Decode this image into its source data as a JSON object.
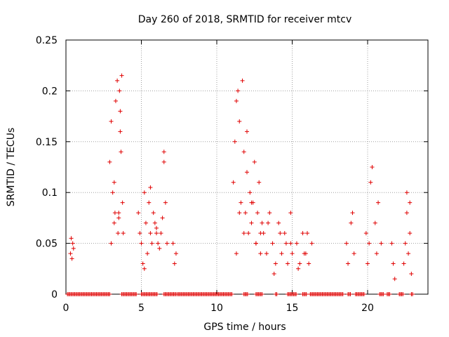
{
  "chart_data": {
    "type": "scatter",
    "title": "Day 260 of 2018, SRMTID for receiver mtcv",
    "xlabel": "GPS time / hours",
    "ylabel": "SRMTID / TECUs",
    "xlim": [
      0,
      24
    ],
    "ylim": [
      0,
      0.25
    ],
    "xticks": [
      0,
      5,
      10,
      15,
      20
    ],
    "yticks": [
      0,
      0.05,
      0.1,
      0.15,
      0.2,
      0.25
    ],
    "xtick_labels": [
      "0",
      "5",
      "10",
      "15",
      "20"
    ],
    "ytick_labels": [
      "0",
      "0.05",
      "0.1",
      "0.15",
      "0.2",
      "0.25"
    ],
    "grid": true,
    "marker": "+",
    "color": "#e00000",
    "series": [
      {
        "name": "SRMTID",
        "x": [
          0.3,
          0.35,
          0.4,
          0.45,
          0.5,
          2.9,
          3.0,
          3.1,
          3.2,
          3.25,
          3.3,
          3.4,
          3.45,
          3.5,
          3.55,
          3.6,
          3.65,
          3.7,
          3.75,
          3.8,
          3.0,
          3.2,
          3.5,
          3.6,
          4.8,
          4.9,
          5.0,
          5.1,
          5.2,
          5.3,
          5.4,
          5.5,
          5.6,
          5.7,
          5.8,
          5.9,
          6.0,
          6.1,
          6.2,
          6.3,
          6.4,
          6.5,
          6.6,
          6.7,
          5.2,
          5.6,
          6.0,
          6.5,
          7.1,
          7.2,
          7.3,
          11.1,
          11.2,
          11.3,
          11.4,
          11.5,
          11.6,
          11.7,
          11.8,
          11.9,
          12.0,
          12.1,
          12.2,
          12.3,
          12.4,
          12.5,
          12.6,
          12.7,
          12.8,
          12.9,
          13.0,
          11.3,
          11.5,
          11.8,
          12.0,
          12.3,
          12.6,
          12.9,
          13.1,
          13.3,
          13.5,
          13.7,
          13.9,
          14.1,
          14.3,
          14.5,
          14.7,
          14.9,
          15.0,
          13.4,
          13.8,
          14.2,
          14.6,
          14.9,
          15.3,
          15.5,
          15.7,
          15.9,
          16.1,
          16.3,
          15.4,
          15.8,
          16.0,
          18.6,
          18.7,
          18.9,
          19.0,
          19.1,
          19.9,
          20.0,
          20.1,
          20.3,
          20.5,
          20.7,
          20.9,
          20.2,
          20.6,
          21.6,
          21.7,
          21.8,
          22.4,
          22.5,
          22.6,
          22.7,
          22.8,
          22.9,
          22.6,
          22.8
        ],
        "y": [
          0.04,
          0.055,
          0.035,
          0.05,
          0.045,
          0.13,
          0.17,
          0.1,
          0.07,
          0.08,
          0.19,
          0.21,
          0.06,
          0.08,
          0.2,
          0.18,
          0.14,
          0.215,
          0.09,
          0.06,
          0.05,
          0.11,
          0.075,
          0.16,
          0.08,
          0.06,
          0.05,
          0.03,
          0.1,
          0.07,
          0.04,
          0.09,
          0.06,
          0.05,
          0.08,
          0.07,
          0.06,
          0.05,
          0.045,
          0.06,
          0.075,
          0.13,
          0.09,
          0.05,
          0.025,
          0.105,
          0.065,
          0.14,
          0.05,
          0.03,
          0.04,
          0.11,
          0.15,
          0.19,
          0.2,
          0.17,
          0.09,
          0.21,
          0.14,
          0.08,
          0.12,
          0.06,
          0.1,
          0.07,
          0.09,
          0.13,
          0.05,
          0.08,
          0.11,
          0.06,
          0.07,
          0.04,
          0.08,
          0.06,
          0.16,
          0.09,
          0.05,
          0.04,
          0.06,
          0.04,
          0.08,
          0.05,
          0.03,
          0.07,
          0.04,
          0.06,
          0.03,
          0.05,
          0.04,
          0.07,
          0.02,
          0.06,
          0.05,
          0.08,
          0.05,
          0.03,
          0.06,
          0.04,
          0.03,
          0.05,
          0.025,
          0.04,
          0.06,
          0.05,
          0.03,
          0.07,
          0.08,
          0.04,
          0.06,
          0.03,
          0.05,
          0.125,
          0.07,
          0.09,
          0.05,
          0.11,
          0.04,
          0.05,
          0.03,
          0.015,
          0.03,
          0.05,
          0.1,
          0.04,
          0.06,
          0.02,
          0.08,
          0.09
        ],
        "baseline_x_ranges": [
          [
            0.1,
            2.9
          ],
          [
            3.7,
            4.7
          ],
          [
            5.0,
            6.1
          ],
          [
            6.5,
            7.3
          ],
          [
            7.4,
            11.0
          ],
          [
            11.8,
            12.1
          ],
          [
            12.6,
            13.0
          ],
          [
            13.9,
            14.0
          ],
          [
            14.7,
            15.3
          ],
          [
            15.7,
            16.0
          ],
          [
            16.2,
            18.4
          ],
          [
            18.7,
            18.9
          ],
          [
            19.2,
            19.8
          ],
          [
            20.8,
            21.1
          ],
          [
            21.3,
            21.5
          ],
          [
            22.1,
            22.4
          ],
          [
            22.9,
            23.0
          ]
        ]
      }
    ]
  }
}
